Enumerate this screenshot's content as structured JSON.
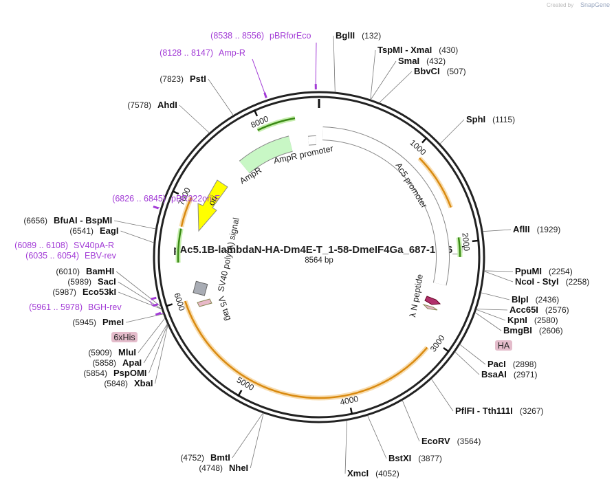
{
  "credit": {
    "prefix": "Created by",
    "brand": "SnapGene"
  },
  "map": {
    "title": "pAc5.1B-lambdaN-HA-Dm4E-T_1-58-DmeIF4Ga_687-1666_T",
    "size": {
      "value": 8564,
      "label": "8564 bp"
    },
    "ticks": [
      1000,
      2000,
      3000,
      4000,
      5000,
      6000,
      7000,
      8000
    ]
  },
  "enzymes": [
    {
      "name": "BglII",
      "site": {
        "value": 132,
        "label": "(132)"
      }
    },
    {
      "name": "TspMI  - XmaI",
      "site": {
        "value": 430,
        "label": "(430)"
      }
    },
    {
      "name": "SmaI",
      "site": {
        "value": 432,
        "label": "(432)"
      }
    },
    {
      "name": "BbvCI",
      "site": {
        "value": 507,
        "label": "(507)"
      }
    },
    {
      "name": "SphI",
      "site": {
        "value": 1115,
        "label": "(1115)"
      }
    },
    {
      "name": "AflII",
      "site": {
        "value": 1929,
        "label": "(1929)"
      }
    },
    {
      "name": "PpuMI",
      "site": {
        "value": 2254,
        "label": "(2254)"
      }
    },
    {
      "name": "NcoI  - StyI",
      "site": {
        "value": 2258,
        "label": "(2258)"
      }
    },
    {
      "name": "BlpI",
      "site": {
        "value": 2436,
        "label": "(2436)"
      }
    },
    {
      "name": "Acc65I",
      "site": {
        "value": 2576,
        "label": "(2576)"
      }
    },
    {
      "name": "KpnI",
      "site": {
        "value": 2580,
        "label": "(2580)"
      }
    },
    {
      "name": "BmgBI",
      "site": {
        "value": 2606,
        "label": "(2606)"
      }
    },
    {
      "name": "PacI",
      "site": {
        "value": 2898,
        "label": "(2898)"
      }
    },
    {
      "name": "BsaAI",
      "site": {
        "value": 2971,
        "label": "(2971)"
      }
    },
    {
      "name": "PflFI  - Tth111I",
      "site": {
        "value": 3267,
        "label": "(3267)"
      }
    },
    {
      "name": "EcoRV",
      "site": {
        "value": 3564,
        "label": "(3564)"
      }
    },
    {
      "name": "BstXI",
      "site": {
        "value": 3877,
        "label": "(3877)"
      }
    },
    {
      "name": "XmcI",
      "site": {
        "value": 4052,
        "label": "(4052)"
      }
    },
    {
      "name": "BmtI",
      "site": {
        "value": 4752,
        "label": "(4752)"
      }
    },
    {
      "name": "NheI",
      "site": {
        "value": 4748,
        "label": "(4748)"
      }
    },
    {
      "name": "XbaI",
      "site": {
        "value": 5848,
        "label": "(5848)"
      }
    },
    {
      "name": "PspOMI",
      "site": {
        "value": 5854,
        "label": "(5854)"
      }
    },
    {
      "name": "ApaI",
      "site": {
        "value": 5858,
        "label": "(5858)"
      }
    },
    {
      "name": "MluI",
      "site": {
        "value": 5909,
        "label": "(5909)"
      }
    },
    {
      "name": "PmeI",
      "site": {
        "value": 5945,
        "label": "(5945)"
      }
    },
    {
      "name": "Eco53kI",
      "site": {
        "value": 5987,
        "label": "(5987)"
      }
    },
    {
      "name": "SacI",
      "site": {
        "value": 5989,
        "label": "(5989)"
      }
    },
    {
      "name": "BamHI",
      "site": {
        "value": 6010,
        "label": "(6010)"
      }
    },
    {
      "name": "EagI",
      "site": {
        "value": 6541,
        "label": "(6541)"
      }
    },
    {
      "name": "BfuAI  - BspMI",
      "site": {
        "value": 6656,
        "label": "(6656)"
      }
    },
    {
      "name": "AhdI",
      "site": {
        "value": 7578,
        "label": "(7578)"
      }
    },
    {
      "name": "PstI",
      "site": {
        "value": 7823,
        "label": "(7823)"
      }
    }
  ],
  "primers": [
    {
      "location": "(8538 .. 8556)",
      "name": "pBRforEco",
      "start": 8538
    },
    {
      "location": "(8128 .. 8147)",
      "name": "Amp-R",
      "start": 8128
    },
    {
      "location": "(6826 .. 6845)",
      "name": "pBR322ori-F",
      "start": 6826
    },
    {
      "location": "(6089 .. 6108)",
      "name": "SV40pA-R",
      "start": 6089
    },
    {
      "location": "(6035 .. 6054)",
      "name": "EBV-rev",
      "start": 6035
    },
    {
      "location": "(5961 .. 5978)",
      "name": "BGH-rev",
      "start": 5961
    }
  ],
  "features": {
    "boxes": [
      "6xHis",
      "HA"
    ],
    "labels": [
      "AmpR promoter",
      "AmpR",
      "ori",
      "SV40 poly(A) signal",
      "V5 tag",
      "Ac5 promoter",
      "λ N peptide"
    ]
  }
}
